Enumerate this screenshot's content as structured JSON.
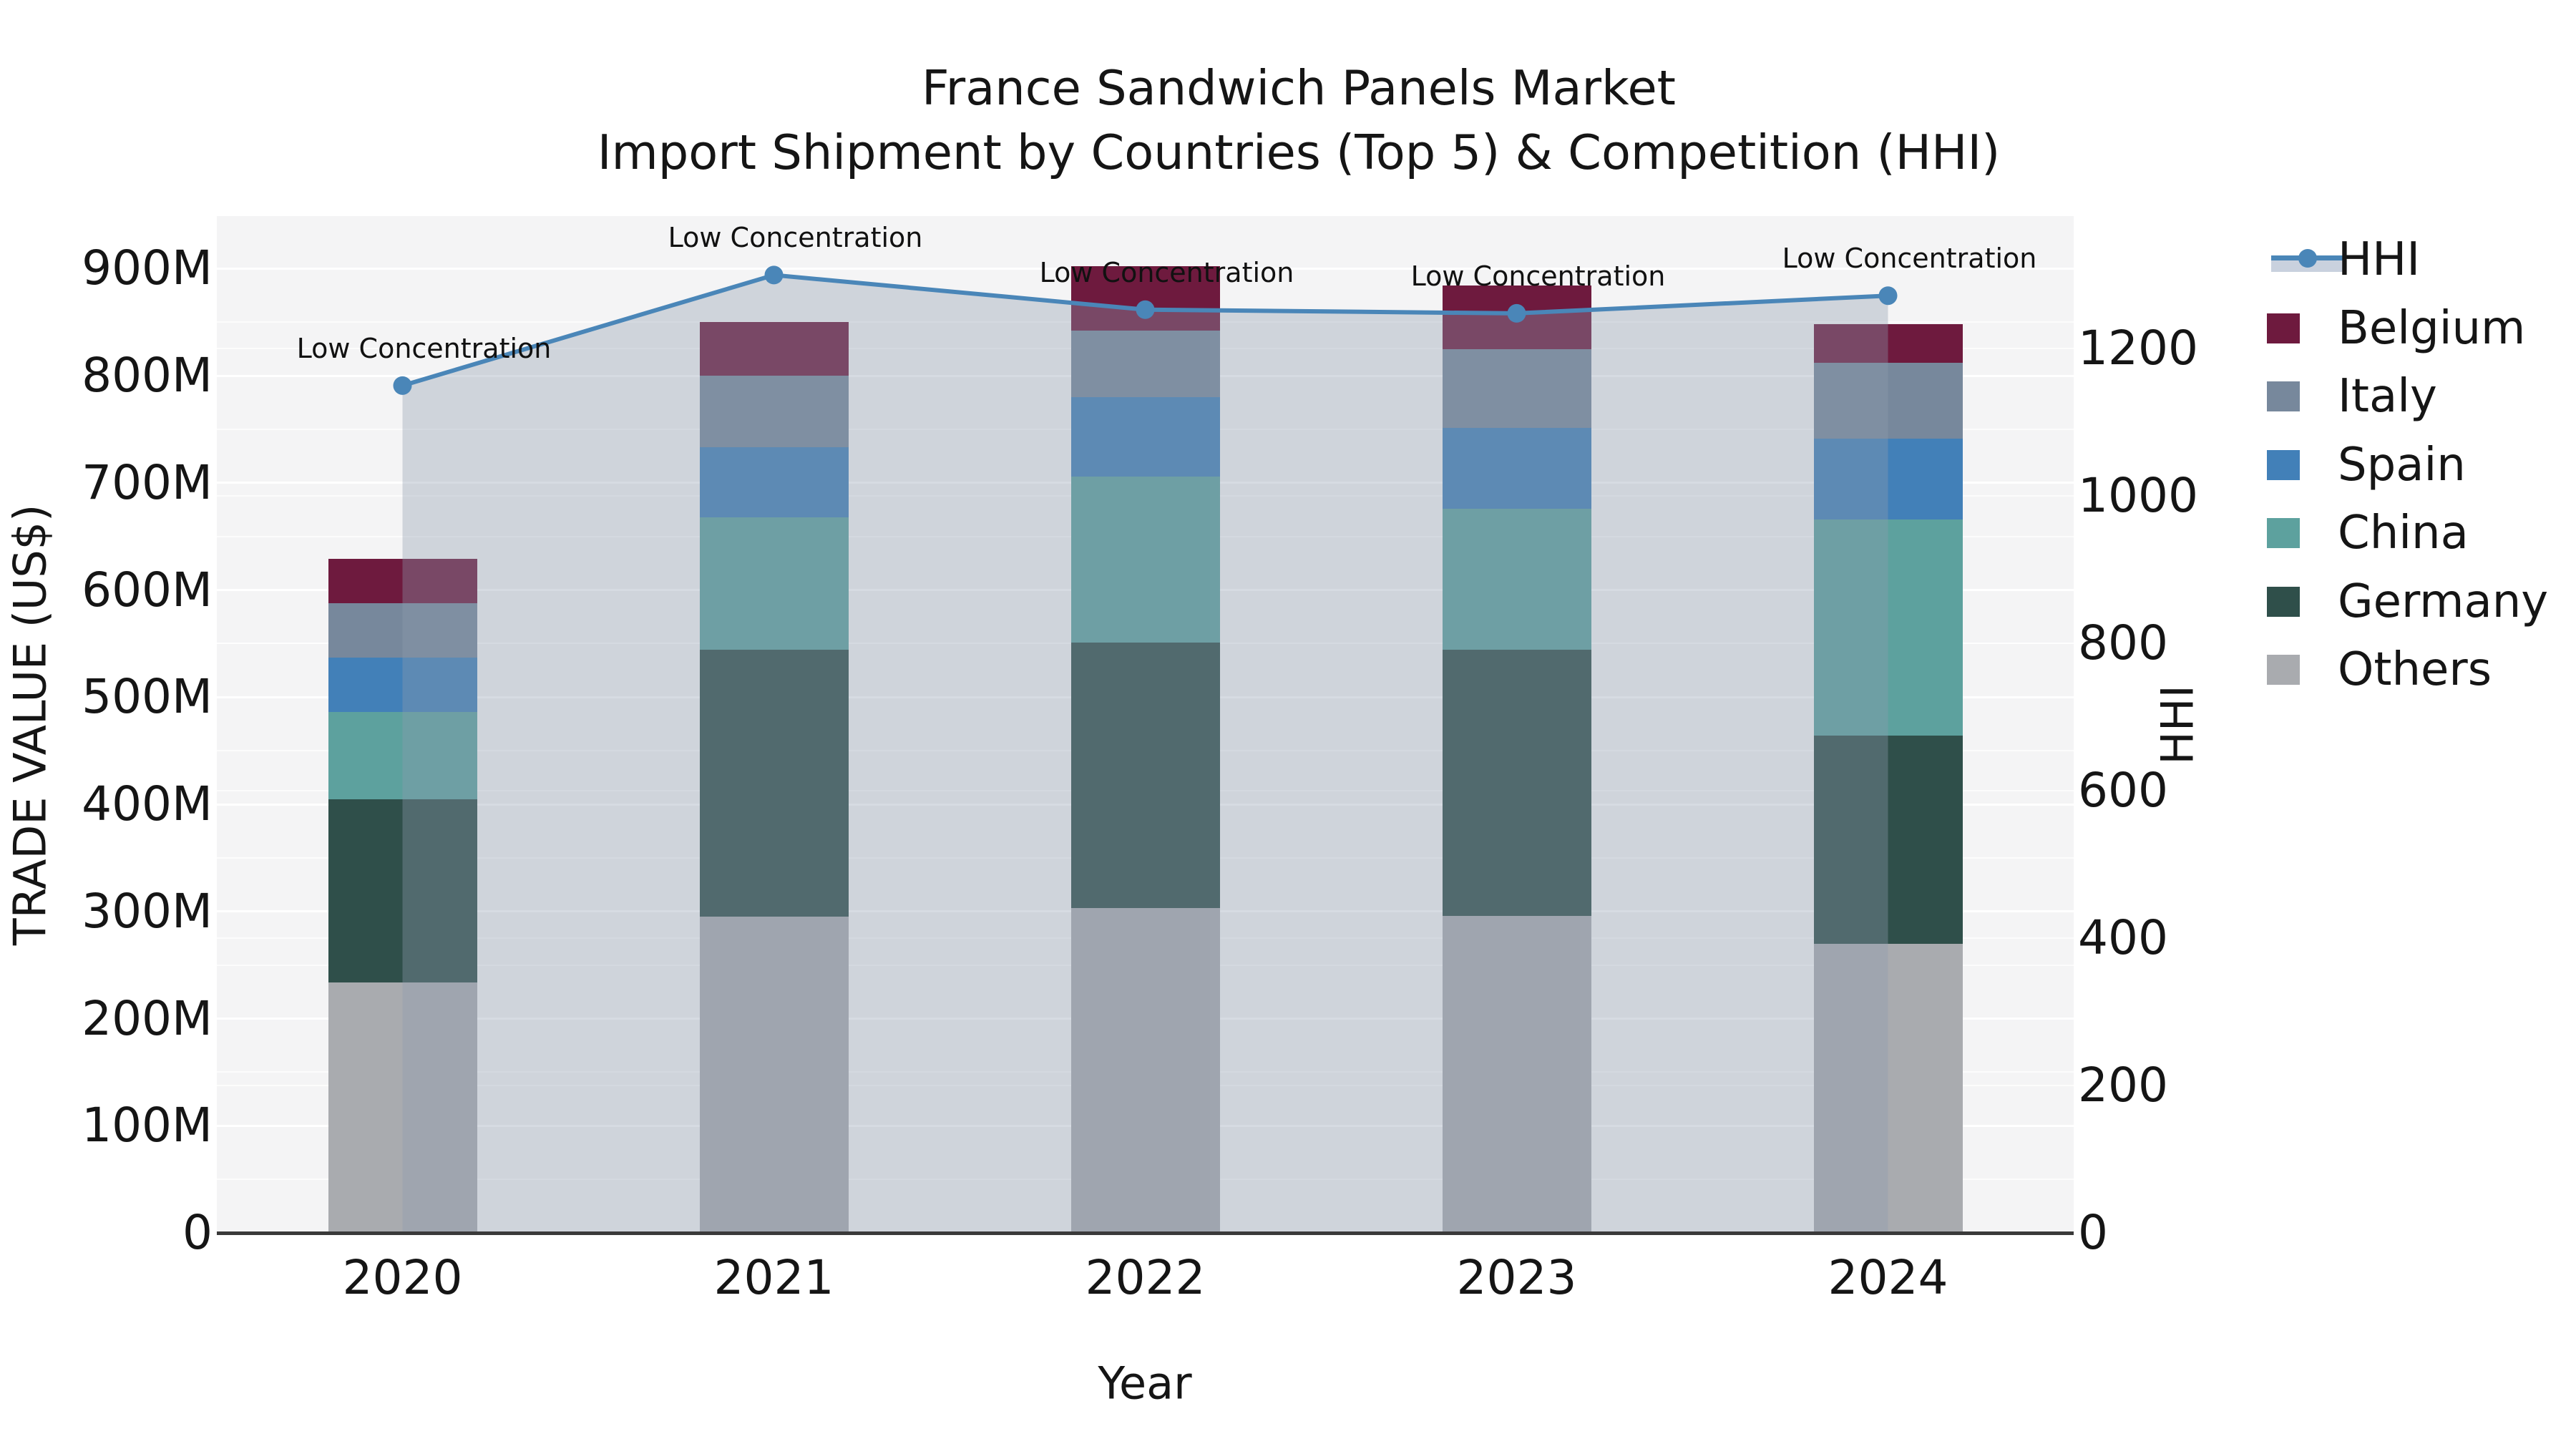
{
  "title": {
    "line1": "France Sandwich Panels Market",
    "line2": "Import Shipment by Countries (Top 5) & Competition (HHI)"
  },
  "axes": {
    "left_label": "TRADE VALUE (US$)",
    "right_label": "HHI",
    "x_label": "Year"
  },
  "annotation_text": "Low Concentration",
  "legend_items": [
    "HHI",
    "Belgium",
    "Italy",
    "Spain",
    "China",
    "Germany",
    "Others"
  ],
  "colors": {
    "Belgium": "#6e1a3e",
    "Italy": "#77889c",
    "Spain": "#4280b8",
    "China": "#5da19e",
    "Germany": "#2f4f4a",
    "Others": "#a9abaf",
    "hhi_line": "#4a86b8",
    "hhi_fill": "#8c9baf",
    "hhi_fill_opacity": 0.36,
    "legend_band": "#c9d1de",
    "plot_bg": "#f4f4f5",
    "grid": "#ffffff",
    "spine": "#3a3a3a",
    "text": "#151515"
  },
  "chart_data": {
    "type": "combo-stacked-bar-line",
    "title": "France Sandwich Panels Market — Import Shipment by Countries (Top 5) & Competition (HHI)",
    "categories": [
      "2020",
      "2021",
      "2022",
      "2023",
      "2024"
    ],
    "bar_unit": "Million US$ (trade value)",
    "stack_order_bottom_to_top": [
      "Others",
      "Germany",
      "China",
      "Spain",
      "Italy",
      "Belgium"
    ],
    "series": [
      {
        "name": "Others",
        "values": [
          234,
          295,
          303,
          296,
          270
        ]
      },
      {
        "name": "Germany",
        "values": [
          171,
          249,
          248,
          248,
          194
        ]
      },
      {
        "name": "China",
        "values": [
          81,
          124,
          155,
          132,
          202
        ]
      },
      {
        "name": "Spain",
        "values": [
          51,
          65,
          74,
          75,
          75
        ]
      },
      {
        "name": "Italy",
        "values": [
          51,
          67,
          62,
          74,
          71
        ]
      },
      {
        "name": "Belgium",
        "values": [
          41,
          50,
          60,
          59,
          36
        ]
      }
    ],
    "bar_totals": [
      629,
      850,
      902,
      884,
      848
    ],
    "line": {
      "name": "HHI",
      "axis": "right",
      "values": [
        1150,
        1300,
        1253,
        1248,
        1272
      ],
      "area_fill": true,
      "point_annotations": [
        "Low Concentration",
        "Low Concentration",
        "Low Concentration",
        "Low Concentration",
        "Low Concentration"
      ]
    },
    "left_axis": {
      "label": "TRADE VALUE (US$)",
      "ticks": [
        {
          "label": "0",
          "value": 0
        },
        {
          "label": "100M",
          "value": 100
        },
        {
          "label": "200M",
          "value": 200
        },
        {
          "label": "300M",
          "value": 300
        },
        {
          "label": "400M",
          "value": 400
        },
        {
          "label": "500M",
          "value": 500
        },
        {
          "label": "600M",
          "value": 600
        },
        {
          "label": "700M",
          "value": 700
        },
        {
          "label": "800M",
          "value": 800
        },
        {
          "label": "900M",
          "value": 900
        }
      ],
      "max": 949,
      "minor_step": 50
    },
    "right_axis": {
      "label": "HHI",
      "ticks": [
        {
          "label": "0",
          "value": 0
        },
        {
          "label": "200",
          "value": 200
        },
        {
          "label": "400",
          "value": 400
        },
        {
          "label": "600",
          "value": 600
        },
        {
          "label": "800",
          "value": 800
        },
        {
          "label": "1000",
          "value": 1000
        },
        {
          "label": "1200",
          "value": 1200
        }
      ],
      "max": 1380,
      "grid_step": 200
    },
    "x_axis": {
      "label": "Year"
    },
    "legend_position": "right",
    "grid": true
  }
}
